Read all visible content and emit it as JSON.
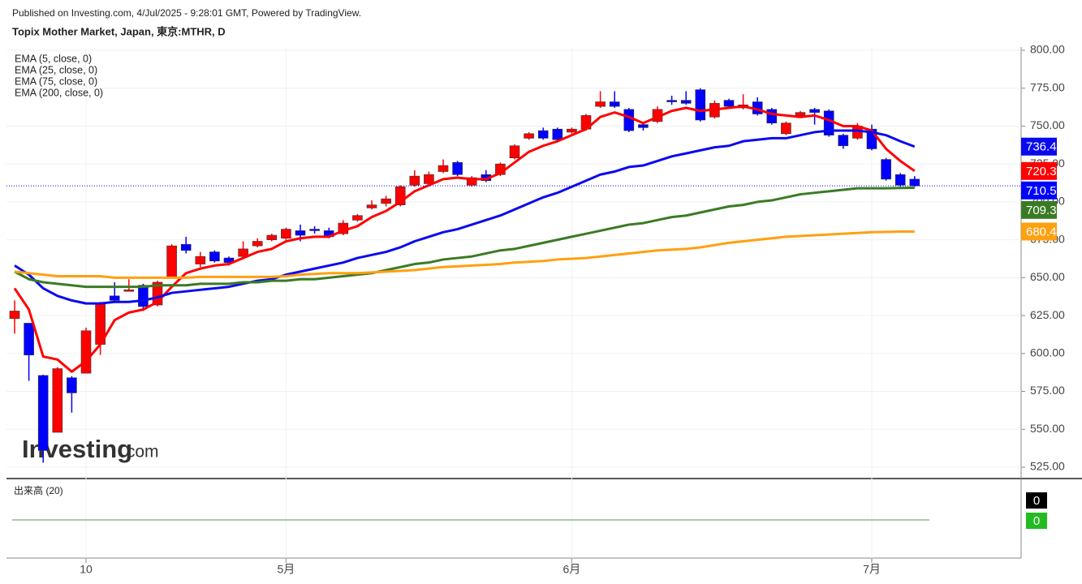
{
  "header": {
    "published": "Published on Investing.com, 4/Jul/2025 - 9:28:01 GMT, Powered by TradingView.",
    "title": "Topix Mother Market, Japan, 東京:MTHR, D"
  },
  "watermark": {
    "name": "Investing",
    "suffix": ".com"
  },
  "chart_data": {
    "type": "candlestick",
    "categories": [
      null,
      null,
      null,
      null,
      null,
      "10",
      null,
      null,
      null,
      null,
      null,
      null,
      null,
      null,
      null,
      null,
      null,
      null,
      null,
      "5月",
      null,
      null,
      null,
      null,
      null,
      null,
      null,
      null,
      null,
      null,
      null,
      null,
      null,
      null,
      null,
      null,
      null,
      null,
      null,
      "6月",
      null,
      null,
      null,
      null,
      null,
      null,
      null,
      null,
      null,
      null,
      null,
      null,
      null,
      null,
      null,
      null,
      null,
      null,
      null,
      null,
      "7月",
      null,
      null,
      null
    ],
    "ohlc": {
      "open": [
        623,
        620,
        585.5,
        548,
        584,
        587,
        606,
        638,
        641,
        645,
        632,
        650,
        672,
        659,
        667,
        663,
        664,
        671,
        675,
        676,
        681,
        682,
        681,
        679,
        688,
        696,
        699,
        698,
        711,
        712,
        720,
        726,
        711,
        718,
        718,
        729,
        742,
        747,
        748,
        746,
        748,
        763,
        766,
        761,
        751,
        753,
        767,
        767,
        774,
        756,
        767,
        762,
        766,
        761,
        745,
        757,
        761,
        760,
        744,
        742,
        748,
        728,
        718,
        715
      ],
      "high": [
        635,
        620,
        586,
        591,
        585,
        617,
        634,
        647,
        649,
        646,
        648,
        672,
        677,
        667,
        668,
        664,
        674,
        676,
        679,
        683,
        685,
        684,
        683,
        688,
        692,
        701,
        704,
        711,
        721,
        720,
        728,
        727,
        717,
        721,
        726,
        738,
        746,
        749,
        749,
        749,
        758,
        773,
        773,
        762,
        752,
        763,
        770,
        773,
        775,
        767,
        768,
        771,
        769,
        762,
        753,
        760,
        762,
        761,
        745,
        752,
        751,
        729,
        719,
        717
      ],
      "low": [
        613,
        582,
        528,
        548,
        561,
        587,
        599,
        634,
        641,
        628,
        631,
        650,
        666,
        657,
        660,
        658,
        663,
        670,
        674,
        675,
        674,
        679,
        676,
        678,
        687,
        695,
        697,
        697,
        710,
        711,
        719,
        717,
        710,
        713,
        717,
        728,
        741,
        741,
        740,
        745,
        747,
        762,
        762,
        746,
        747,
        752,
        764,
        764,
        753,
        755,
        762,
        761,
        757,
        751,
        744,
        756,
        751,
        743,
        735,
        741,
        734,
        714,
        710,
        710
      ],
      "close": [
        628,
        599,
        536,
        590,
        574,
        615,
        633,
        635,
        642,
        631,
        647,
        671,
        668,
        664,
        661,
        660,
        669,
        674,
        678,
        682,
        678,
        681,
        677,
        686,
        691,
        698,
        702,
        710,
        717,
        718,
        724,
        718,
        716,
        714,
        725,
        737,
        745,
        742,
        741,
        748,
        757,
        766,
        763,
        747,
        749,
        761,
        766,
        765,
        754,
        765,
        763,
        764,
        758,
        752,
        752,
        759,
        759,
        744,
        737,
        750,
        735,
        715,
        711,
        710.59
      ]
    },
    "up_color": "#ff0000",
    "down_color": "#0000ff",
    "last_price_color": "#0000ff",
    "series": [
      {
        "name": "EMA (5, close, 0)",
        "color": "#ff0000",
        "values": [
          643,
          629,
          598,
          596,
          588,
          595,
          606,
          622,
          627,
          629,
          634,
          644,
          653,
          656,
          658,
          659,
          663,
          667,
          669,
          674,
          676,
          677,
          677,
          681,
          684,
          690,
          694,
          700,
          707,
          711,
          715,
          716,
          715,
          715,
          719,
          726,
          733,
          737,
          740,
          744,
          748,
          756,
          759,
          756,
          752,
          756,
          760,
          762,
          760,
          761,
          762,
          763,
          761,
          758,
          757,
          756,
          757,
          754,
          750,
          750,
          747,
          735,
          727,
          720.39
        ]
      },
      {
        "name": "EMA (25, close, 0)",
        "color": "#0a0aee",
        "values": [
          658,
          652,
          643,
          638,
          635,
          633,
          633,
          634,
          634,
          635,
          637,
          640,
          641,
          642,
          643,
          644,
          646,
          648,
          649,
          652,
          654,
          656,
          658,
          660,
          663,
          665,
          667,
          670,
          674,
          677,
          680,
          682,
          685,
          688,
          691,
          695,
          699,
          703,
          706,
          710,
          714,
          718,
          720,
          723,
          724,
          727,
          730,
          732,
          734,
          736,
          737,
          740,
          741,
          742,
          742,
          744,
          746,
          747,
          747,
          747,
          746,
          744,
          740,
          736.47
        ]
      },
      {
        "name": "EMA (75, close, 0)",
        "color": "#3b7a24",
        "values": [
          654,
          649,
          647,
          646,
          645,
          644,
          644,
          644,
          644,
          644,
          645,
          645,
          645,
          646,
          646,
          646,
          647,
          647,
          648,
          648,
          649,
          649,
          650,
          651,
          652,
          653,
          655,
          657,
          659,
          660,
          662,
          663,
          664,
          666,
          668,
          669,
          671,
          673,
          675,
          677,
          679,
          681,
          683,
          685,
          686,
          688,
          690,
          691,
          693,
          695,
          697,
          698,
          700,
          701,
          703,
          705,
          706,
          707,
          708,
          709,
          709,
          709,
          709.2,
          709.32
        ]
      },
      {
        "name": "EMA (200, close, 0)",
        "color": "#ffa010",
        "values": [
          654,
          653,
          652,
          651,
          651,
          651,
          651,
          650,
          650,
          650,
          650,
          650,
          650,
          650.5,
          650.5,
          650.5,
          650.5,
          650.5,
          650.5,
          651,
          652,
          652.5,
          653,
          653,
          653,
          653.5,
          654,
          654.5,
          655,
          656,
          657,
          657.5,
          658,
          658.5,
          659,
          660,
          660.5,
          661,
          662,
          662.5,
          663,
          664,
          665,
          666,
          667,
          668,
          668.5,
          669,
          670,
          671.5,
          673,
          674,
          675,
          676,
          677,
          677.5,
          678,
          678.5,
          679,
          679.5,
          680,
          680.2,
          680.4,
          680.44
        ]
      }
    ],
    "ylim": [
      525,
      800
    ],
    "yticks": [
      {
        "value": 525,
        "label": "525.00"
      },
      {
        "value": 550,
        "label": "550.00"
      },
      {
        "value": 575,
        "label": "575.00"
      },
      {
        "value": 600,
        "label": "600.00"
      },
      {
        "value": 625,
        "label": "625.00"
      },
      {
        "value": 650,
        "label": "650.00"
      },
      {
        "value": 675,
        "label": "675.00"
      },
      {
        "value": 700,
        "label": "700.00"
      },
      {
        "value": 725,
        "label": "725.00"
      },
      {
        "value": 750,
        "label": "750.00"
      },
      {
        "value": 775,
        "label": "775.00"
      },
      {
        "value": 800,
        "label": "800.00"
      }
    ],
    "grid": true,
    "volume": {
      "title": "出来高 (20)",
      "values": [
        0,
        0
      ],
      "colors": [
        "#000000",
        "#22bb22"
      ]
    }
  }
}
